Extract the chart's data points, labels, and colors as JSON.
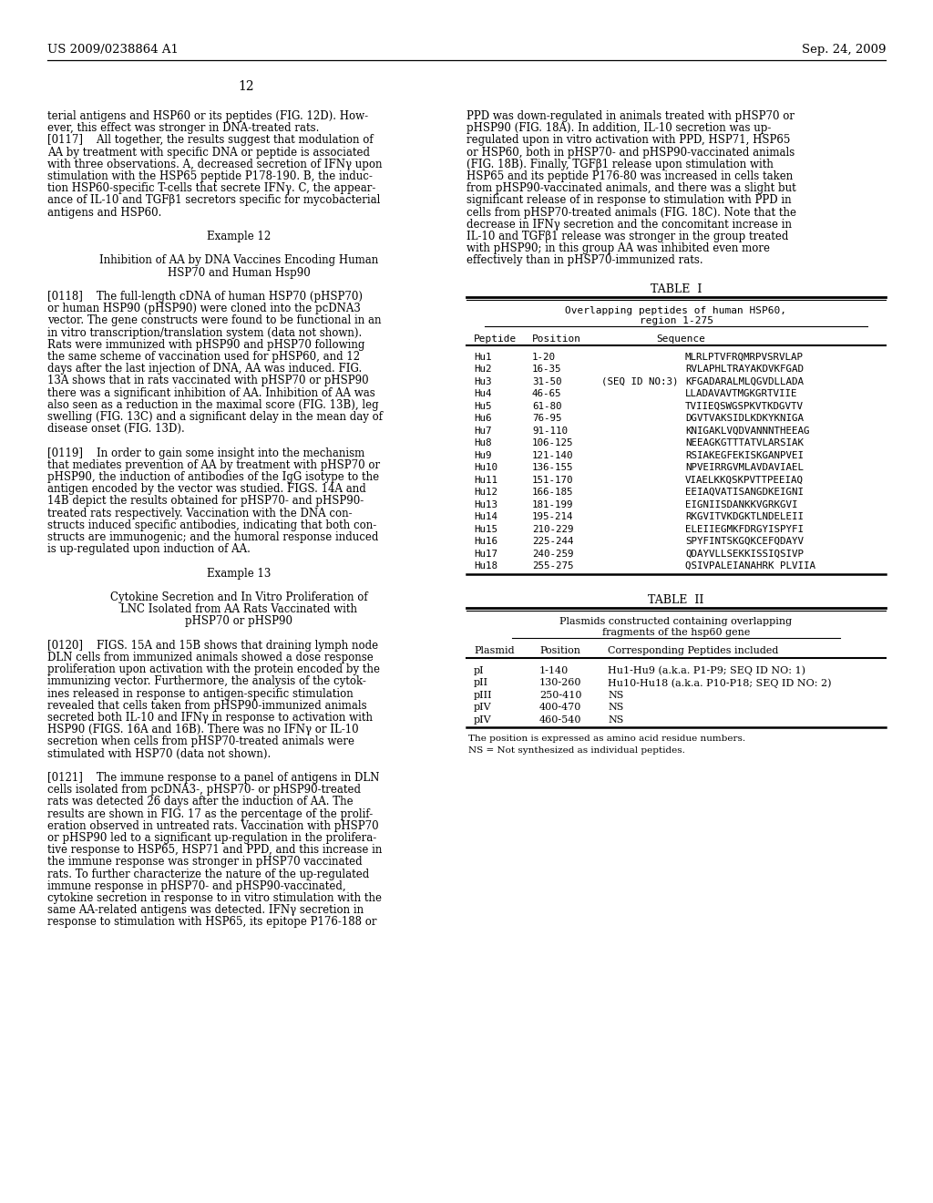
{
  "header_left": "US 2009/0238864 A1",
  "header_right": "Sep. 24, 2009",
  "page_number": "12",
  "bg_color": "#ffffff",
  "text_color": "#000000",
  "left_column_text": [
    "terial antigens and HSP60 or its peptides (FIG. 12D). How-",
    "ever, this effect was stronger in DNA-treated rats.",
    "[0117]    All together, the results suggest that modulation of",
    "AA by treatment with specific DNA or peptide is associated",
    "with three observations. A, decreased secretion of IFNγ upon",
    "stimulation with the HSP65 peptide P178-190. B, the induc-",
    "tion HSP60-specific T-cells that secrete IFNγ. C, the appear-",
    "ance of IL-10 and TGFβ1 secretors specific for mycobacterial",
    "antigens and HSP60.",
    "",
    "Example 12",
    "",
    "Inhibition of AA by DNA Vaccines Encoding Human",
    "HSP70 and Human Hsp90",
    "",
    "[0118]    The full-length cDNA of human HSP70 (pHSP70)",
    "or human HSP90 (pHSP90) were cloned into the pcDNA3",
    "vector. The gene constructs were found to be functional in an",
    "in vitro transcription/translation system (data not shown).",
    "Rats were immunized with pHSP90 and pHSP70 following",
    "the same scheme of vaccination used for pHSP60, and 12",
    "days after the last injection of DNA, AA was induced. FIG.",
    "13A shows that in rats vaccinated with pHSP70 or pHSP90",
    "there was a significant inhibition of AA. Inhibition of AA was",
    "also seen as a reduction in the maximal score (FIG. 13B), leg",
    "swelling (FIG. 13C) and a significant delay in the mean day of",
    "disease onset (FIG. 13D).",
    "",
    "[0119]    In order to gain some insight into the mechanism",
    "that mediates prevention of AA by treatment with pHSP70 or",
    "pHSP90, the induction of antibodies of the IgG isotype to the",
    "antigen encoded by the vector was studied. FIGS. 14A and",
    "14B depict the results obtained for pHSP70- and pHSP90-",
    "treated rats respectively. Vaccination with the DNA con-",
    "structs induced specific antibodies, indicating that both con-",
    "structs are immunogenic; and the humoral response induced",
    "is up-regulated upon induction of AA.",
    "",
    "Example 13",
    "",
    "Cytokine Secretion and In Vitro Proliferation of",
    "LNC Isolated from AA Rats Vaccinated with",
    "pHSP70 or pHSP90",
    "",
    "[0120]    FIGS. 15A and 15B shows that draining lymph node",
    "DLN cells from immunized animals showed a dose response",
    "proliferation upon activation with the protein encoded by the",
    "immunizing vector. Furthermore, the analysis of the cytok-",
    "ines released in response to antigen-specific stimulation",
    "revealed that cells taken from pHSP90-immunized animals",
    "secreted both IL-10 and IFNγ in response to activation with",
    "HSP90 (FIGS. 16A and 16B). There was no IFNγ or IL-10",
    "secretion when cells from pHSP70-treated animals were",
    "stimulated with HSP70 (data not shown).",
    "",
    "[0121]    The immune response to a panel of antigens in DLN",
    "cells isolated from pcDNA3-, pHSP70- or pHSP90-treated",
    "rats was detected 26 days after the induction of AA. The",
    "results are shown in FIG. 17 as the percentage of the prolif-",
    "eration observed in untreated rats. Vaccination with pHSP70",
    "or pHSP90 led to a significant up-regulation in the prolifera-",
    "tive response to HSP65, HSP71 and PPD, and this increase in",
    "the immune response was stronger in pHSP70 vaccinated",
    "rats. To further characterize the nature of the up-regulated",
    "immune response in pHSP70- and pHSP90-vaccinated,",
    "cytokine secretion in response to in vitro stimulation with the",
    "same AA-related antigens was detected. IFNγ secretion in",
    "response to stimulation with HSP65, its epitope P176-188 or"
  ],
  "right_column_text": [
    "PPD was down-regulated in animals treated with pHSP70 or",
    "pHSP90 (FIG. 18A). In addition, IL-10 secretion was up-",
    "regulated upon in vitro activation with PPD, HSP71, HSP65",
    "or HSP60, both in pHSP70- and pHSP90-vaccinated animals",
    "(FIG. 18B). Finally, TGFβ1 release upon stimulation with",
    "HSP65 and its peptide P176-80 was increased in cells taken",
    "from pHSP90-vaccinated animals, and there was a slight but",
    "significant release of in response to stimulation with PPD in",
    "cells from pHSP70-treated animals (FIG. 18C). Note that the",
    "decrease in IFNγ secretion and the concomitant increase in",
    "IL-10 and TGFβ1 release was stronger in the group treated",
    "with pHSP90; in this group AA was inhibited even more",
    "effectively than in pHSP70-immunized rats."
  ],
  "table1_title": "TABLE  I",
  "table1_subtitle": "Overlapping peptides of human HSP60,",
  "table1_subtitle2": "region 1-275",
  "table1_col_headers": [
    "Peptide",
    "Position",
    "Sequence"
  ],
  "table1_rows": [
    [
      "Hu1",
      "1-20",
      "",
      "MLRLPTVFRQMRPVSRVLAP"
    ],
    [
      "Hu2",
      "16-35",
      "",
      "RVLAPHLTRAYAKDVKFGAD"
    ],
    [
      "Hu3",
      "31-50",
      "(SEQ ID NO:3)",
      "KFGADARALMLQGVDLLADA"
    ],
    [
      "Hu4",
      "46-65",
      "",
      "LLADAVAVTMGKGRTVIIE"
    ],
    [
      "Hu5",
      "61-80",
      "",
      "TVIIEQSWGSPKVTKDGVTV"
    ],
    [
      "Hu6",
      "76-95",
      "",
      "DGVTVAKSIDLKDKYKNIGA"
    ],
    [
      "Hu7",
      "91-110",
      "",
      "KNIGAKLVQDVANNNTHEEAG"
    ],
    [
      "Hu8",
      "106-125",
      "",
      "NEEAGKGTTTATVLARSIAK"
    ],
    [
      "Hu9",
      "121-140",
      "",
      "RSIAKEGFEKISKGANPVEI"
    ],
    [
      "Hu10",
      "136-155",
      "",
      "NPVEIRRGVMLAVDAVIAEL"
    ],
    [
      "Hu11",
      "151-170",
      "",
      "VIAELKKQSKPVTTPEEIAQ"
    ],
    [
      "Hu12",
      "166-185",
      "",
      "EEIAQVATISANGDKEIGNI"
    ],
    [
      "Hu13",
      "181-199",
      "",
      "EIGNIISDANKKVGRKGVI"
    ],
    [
      "Hu14",
      "195-214",
      "",
      "RKGVITVKDGKTLNDELEII"
    ],
    [
      "Hu15",
      "210-229",
      "",
      "ELEIIEGMKFDRGYISPYFI"
    ],
    [
      "Hu16",
      "225-244",
      "",
      "SPYFINTSKGQKCEFQDAYV"
    ],
    [
      "Hu17",
      "240-259",
      "",
      "QDAYVLLSEKKISSIQSIVP"
    ],
    [
      "Hu18",
      "255-275",
      "",
      "QSIVPALEIANAHRK PLVIIA"
    ]
  ],
  "table2_title": "TABLE  II",
  "table2_subtitle": "Plasmids constructed containing overlapping",
  "table2_subtitle2": "fragments of the hsp60 gene",
  "table2_col_headers": [
    "Plasmid",
    "Position",
    "Corresponding Peptides included"
  ],
  "table2_rows": [
    [
      "pI",
      "1-140",
      "Hu1-Hu9 (a.k.a. P1-P9; SEQ ID NO: 1)"
    ],
    [
      "pII",
      "130-260",
      "Hu10-Hu18 (a.k.a. P10-P18; SEQ ID NO: 2)"
    ],
    [
      "pIII",
      "250-410",
      "NS"
    ],
    [
      "pIV",
      "400-470",
      "NS"
    ],
    [
      "pIV",
      "460-540",
      "NS"
    ]
  ],
  "table2_footnote1": "The position is expressed as amino acid residue numbers.",
  "table2_footnote2": "NS = Not synthesized as individual peptides."
}
